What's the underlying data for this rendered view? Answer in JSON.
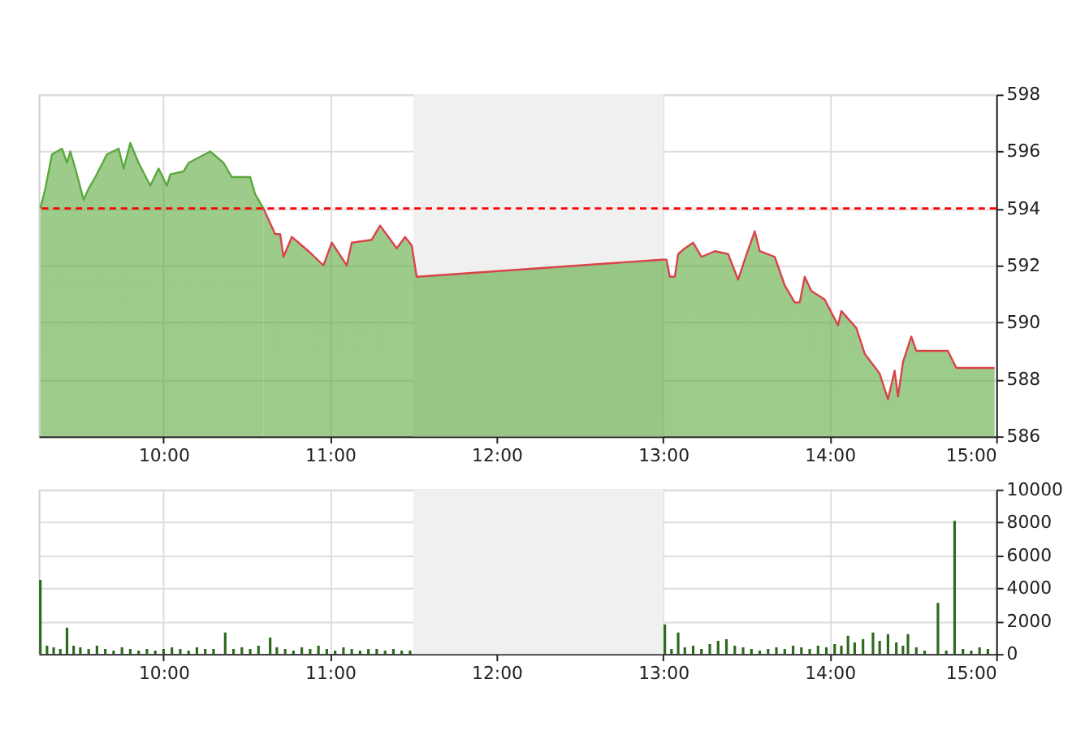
{
  "chart_data": [
    {
      "type": "area",
      "xlim": [
        9.25,
        15
      ],
      "ylim": [
        586,
        598
      ],
      "xticks": [
        {
          "value": 10,
          "label": "10:00"
        },
        {
          "value": 11,
          "label": "11:00"
        },
        {
          "value": 12,
          "label": "12:00"
        },
        {
          "value": 13,
          "label": "13:00"
        },
        {
          "value": 14,
          "label": "14:00"
        },
        {
          "value": 15,
          "label": "15:00"
        }
      ],
      "yticks": [
        586,
        588,
        590,
        592,
        594,
        596,
        598
      ],
      "grid": true,
      "legend": false,
      "ref_lines": [
        {
          "axis": "y",
          "value": 594,
          "color": "#ff0000",
          "line_style": "dashed"
        }
      ],
      "bands": [
        {
          "axis": "x",
          "from": 11.5,
          "to": 13,
          "color": "#f0f0f0"
        }
      ],
      "series": [
        {
          "color": "#5aa83c",
          "x": [
            9.26,
            9.29,
            9.33,
            9.39,
            9.42,
            9.44,
            9.47,
            9.52,
            9.55,
            9.59,
            9.66,
            9.73,
            9.76,
            9.8,
            9.85,
            9.92,
            9.97,
            10.02,
            10.04,
            10.12,
            10.15,
            10.28,
            10.36,
            10.41,
            10.52,
            10.55,
            10.6
          ],
          "values": [
            594.0,
            594.7,
            595.9,
            596.1,
            595.6,
            596.0,
            595.4,
            594.3,
            594.7,
            595.1,
            595.9,
            596.1,
            595.4,
            596.3,
            595.6,
            594.8,
            595.4,
            594.8,
            595.2,
            595.3,
            595.6,
            596.0,
            595.6,
            595.1,
            595.1,
            594.5,
            594.0
          ]
        },
        {
          "color": "#d9434a",
          "x": [
            10.6,
            10.67,
            10.7,
            10.72,
            10.77,
            10.87,
            10.96,
            11.01,
            11.1,
            11.13,
            11.25,
            11.3,
            11.4,
            11.45,
            11.49,
            11.52,
            12.99,
            13.02,
            13.04,
            13.07,
            13.09,
            13.13,
            13.18,
            13.23,
            13.31,
            13.39,
            13.45,
            13.49,
            13.55,
            13.58,
            13.67,
            13.73,
            13.79,
            13.82,
            13.85,
            13.89,
            13.97,
            14.05,
            14.07,
            14.16,
            14.21,
            14.3,
            14.35,
            14.39,
            14.41,
            14.44,
            14.49,
            14.52,
            14.71,
            14.76,
            14.99
          ],
          "values": [
            594.0,
            593.1,
            593.1,
            592.3,
            593.0,
            592.5,
            592.0,
            592.8,
            592.0,
            592.8,
            592.9,
            593.4,
            592.6,
            593.0,
            592.7,
            591.6,
            592.2,
            592.2,
            591.6,
            591.6,
            592.4,
            592.6,
            592.8,
            592.3,
            592.5,
            592.4,
            591.5,
            592.2,
            593.2,
            592.5,
            592.3,
            591.3,
            590.7,
            590.7,
            591.6,
            591.1,
            590.8,
            589.9,
            590.4,
            589.8,
            588.9,
            588.2,
            587.3,
            588.3,
            587.4,
            588.6,
            589.5,
            589.0,
            589.0,
            588.4,
            588.4
          ]
        }
      ]
    },
    {
      "type": "bar",
      "xlim": [
        9.25,
        15
      ],
      "ylim": [
        0,
        10000
      ],
      "xticks": [
        {
          "value": 10,
          "label": "10:00"
        },
        {
          "value": 11,
          "label": "11:00"
        },
        {
          "value": 12,
          "label": "12:00"
        },
        {
          "value": 13,
          "label": "13:00"
        },
        {
          "value": 14,
          "label": "14:00"
        },
        {
          "value": 15,
          "label": "15:00"
        }
      ],
      "yticks": [
        0,
        2000,
        4000,
        6000,
        8000,
        10000
      ],
      "grid": true,
      "legend": false,
      "bands": [
        {
          "axis": "x",
          "from": 11.5,
          "to": 13,
          "color": "#f0f0f0"
        }
      ],
      "series": [
        {
          "color": "#2d6a1e",
          "x": [
            9.26,
            9.3,
            9.34,
            9.38,
            9.42,
            9.46,
            9.5,
            9.55,
            9.6,
            9.65,
            9.7,
            9.75,
            9.8,
            9.85,
            9.9,
            9.95,
            10.0,
            10.05,
            10.1,
            10.15,
            10.2,
            10.25,
            10.3,
            10.37,
            10.42,
            10.47,
            10.52,
            10.57,
            10.64,
            10.68,
            10.73,
            10.78,
            10.83,
            10.88,
            10.93,
            10.98,
            11.03,
            11.08,
            11.13,
            11.18,
            11.23,
            11.28,
            11.33,
            11.38,
            11.43,
            11.48,
            13.01,
            13.05,
            13.09,
            13.13,
            13.18,
            13.23,
            13.28,
            13.33,
            13.38,
            13.43,
            13.48,
            13.53,
            13.58,
            13.63,
            13.68,
            13.73,
            13.78,
            13.83,
            13.88,
            13.93,
            13.98,
            14.03,
            14.07,
            14.11,
            14.15,
            14.2,
            14.26,
            14.3,
            14.35,
            14.4,
            14.44,
            14.47,
            14.52,
            14.57,
            14.65,
            14.7,
            14.75,
            14.8,
            14.85,
            14.9,
            14.95
          ],
          "values": [
            4500,
            500,
            400,
            300,
            1600,
            500,
            400,
            300,
            500,
            300,
            200,
            400,
            300,
            200,
            300,
            200,
            300,
            400,
            300,
            200,
            400,
            300,
            300,
            1300,
            300,
            400,
            300,
            500,
            1000,
            400,
            300,
            200,
            400,
            300,
            500,
            300,
            200,
            400,
            300,
            200,
            300,
            300,
            200,
            300,
            200,
            200,
            1800,
            300,
            1300,
            400,
            500,
            300,
            600,
            800,
            900,
            500,
            400,
            300,
            200,
            300,
            400,
            300,
            500,
            400,
            300,
            500,
            400,
            600,
            500,
            1100,
            700,
            900,
            1300,
            800,
            1200,
            700,
            500,
            1200,
            400,
            200,
            3100,
            200,
            8100,
            300,
            200,
            400,
            300
          ]
        }
      ]
    }
  ]
}
